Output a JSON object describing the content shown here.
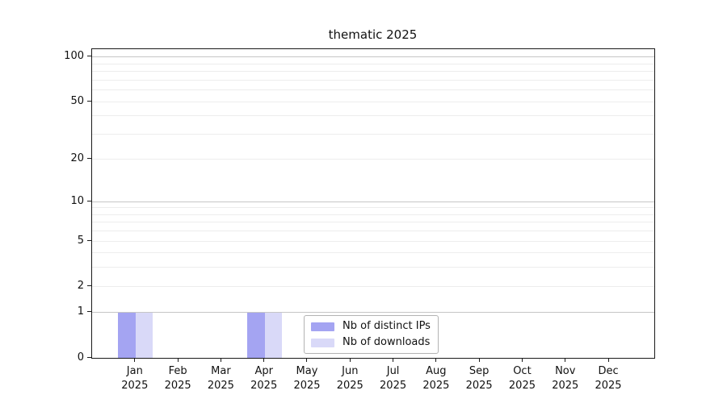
{
  "chart_data": {
    "type": "bar",
    "title": "thematic 2025",
    "categories": [
      "Jan",
      "Feb",
      "Mar",
      "Apr",
      "May",
      "Jun",
      "Jul",
      "Aug",
      "Sep",
      "Oct",
      "Nov",
      "Dec"
    ],
    "year_label": "2025",
    "series": [
      {
        "name": "Nb of distinct IPs",
        "color": "#a4a4f2",
        "values": [
          1,
          0,
          0,
          1,
          0,
          0,
          0,
          0,
          0,
          0,
          0,
          0
        ]
      },
      {
        "name": "Nb of downloads",
        "color": "#d9d9f8",
        "values": [
          1,
          0,
          0,
          1,
          0,
          0,
          0,
          0,
          0,
          0,
          0,
          0
        ]
      }
    ],
    "yticks": [
      0,
      1,
      2,
      5,
      10,
      20,
      50,
      100
    ],
    "major_gridlines": [
      1,
      10,
      100
    ],
    "minor_gridlines": [
      2,
      3,
      4,
      5,
      6,
      7,
      8,
      9,
      20,
      30,
      40,
      50,
      60,
      70,
      80,
      90
    ],
    "scale": "log1p",
    "ylim": [
      0,
      113
    ],
    "xlabel": "",
    "ylabel": "",
    "grid": true,
    "legend_position": "inside-bottom-center"
  },
  "colors": {
    "background": "#ffffff",
    "spine": "#1a1a1a",
    "major_grid": "#c6c6c6",
    "minor_grid": "#ededed",
    "text": "#111111",
    "legend_border": "#b3b3b3"
  }
}
